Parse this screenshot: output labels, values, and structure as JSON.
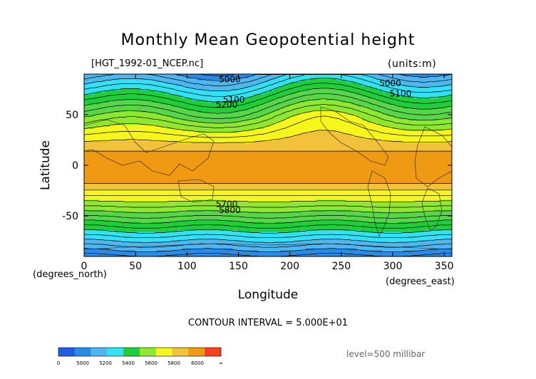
{
  "chart_data": {
    "type": "heatmap",
    "title": "Monthly Mean Geopotential height",
    "subtitle_left": "[HGT_1992-01_NCEP.nc]",
    "subtitle_right": "(units:m)",
    "xlabel": "Longitude",
    "ylabel": "Latitude",
    "x_unit": "(degrees_east)",
    "y_unit": "(degrees_north)",
    "xlim": [
      0,
      357.5
    ],
    "ylim": [
      -90,
      90
    ],
    "x_ticks": [
      0,
      50,
      100,
      150,
      200,
      250,
      300,
      350
    ],
    "y_ticks": [
      50,
      0,
      -50
    ],
    "contour_interval_text": "CONTOUR INTERVAL = 5.000E+01",
    "level_text": "level=500 millibar",
    "contour_labels": [
      "5000",
      "5100",
      "5200",
      "5800",
      "5700",
      "5000",
      "5100"
    ],
    "colorbar": {
      "tick_labels": [
        "0",
        "5000",
        "5200",
        "5400",
        "5600",
        "5800",
        "6000",
        "∞"
      ],
      "colors": [
        "#1f5fe8",
        "#2a8be6",
        "#4fb7ef",
        "#33e1f4",
        "#1fcf3a",
        "#8ee830",
        "#f6f51c",
        "#f2c23a",
        "#ef9a12",
        "#f9421c"
      ]
    },
    "bands": [
      {
        "min": 0,
        "max": 5000,
        "color": "#1f5fe8"
      },
      {
        "min": 5000,
        "max": 5200,
        "color": "#2a8be6"
      },
      {
        "min": 5200,
        "max": 5300,
        "color": "#4fb7ef"
      },
      {
        "min": 5300,
        "max": 5400,
        "color": "#33e1f4"
      },
      {
        "min": 5400,
        "max": 5500,
        "color": "#1fcf3a"
      },
      {
        "min": 5500,
        "max": 5600,
        "color": "#57d64a"
      },
      {
        "min": 5600,
        "max": 5700,
        "color": "#8ee830"
      },
      {
        "min": 5700,
        "max": 5800,
        "color": "#f6f51c"
      },
      {
        "min": 5800,
        "max": 5850,
        "color": "#f2c23a"
      },
      {
        "min": 5850,
        "max": 6000,
        "color": "#ef9a12"
      }
    ]
  }
}
